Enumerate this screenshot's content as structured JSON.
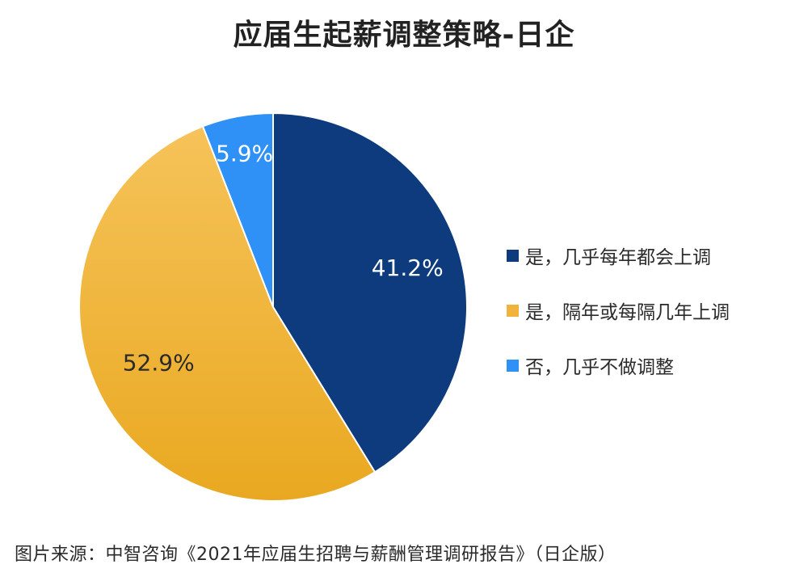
{
  "chart_data": {
    "type": "pie",
    "title": "应届生起薪调整策略-日企",
    "slices": [
      {
        "label": "是，几乎每年都会上调",
        "value": 41.2,
        "display": "41.2%",
        "color": "#0d3b7d",
        "label_color": "#ffffff"
      },
      {
        "label": "是，隔年或每隔几年上调",
        "value": 52.9,
        "display": "52.9%",
        "color": "#f0b43c",
        "label_color": "#2b2b2b"
      },
      {
        "label": "否，几乎不做调整",
        "value": 5.9,
        "display": "5.9%",
        "color": "#2f90f5",
        "label_color": "#ffffff"
      }
    ],
    "start_angle_deg": 0,
    "direction": "clockwise",
    "legend_position": "right"
  },
  "source_note": "图片来源：中智咨询《2021年应届生招聘与薪酬管理调研报告》（日企版）"
}
